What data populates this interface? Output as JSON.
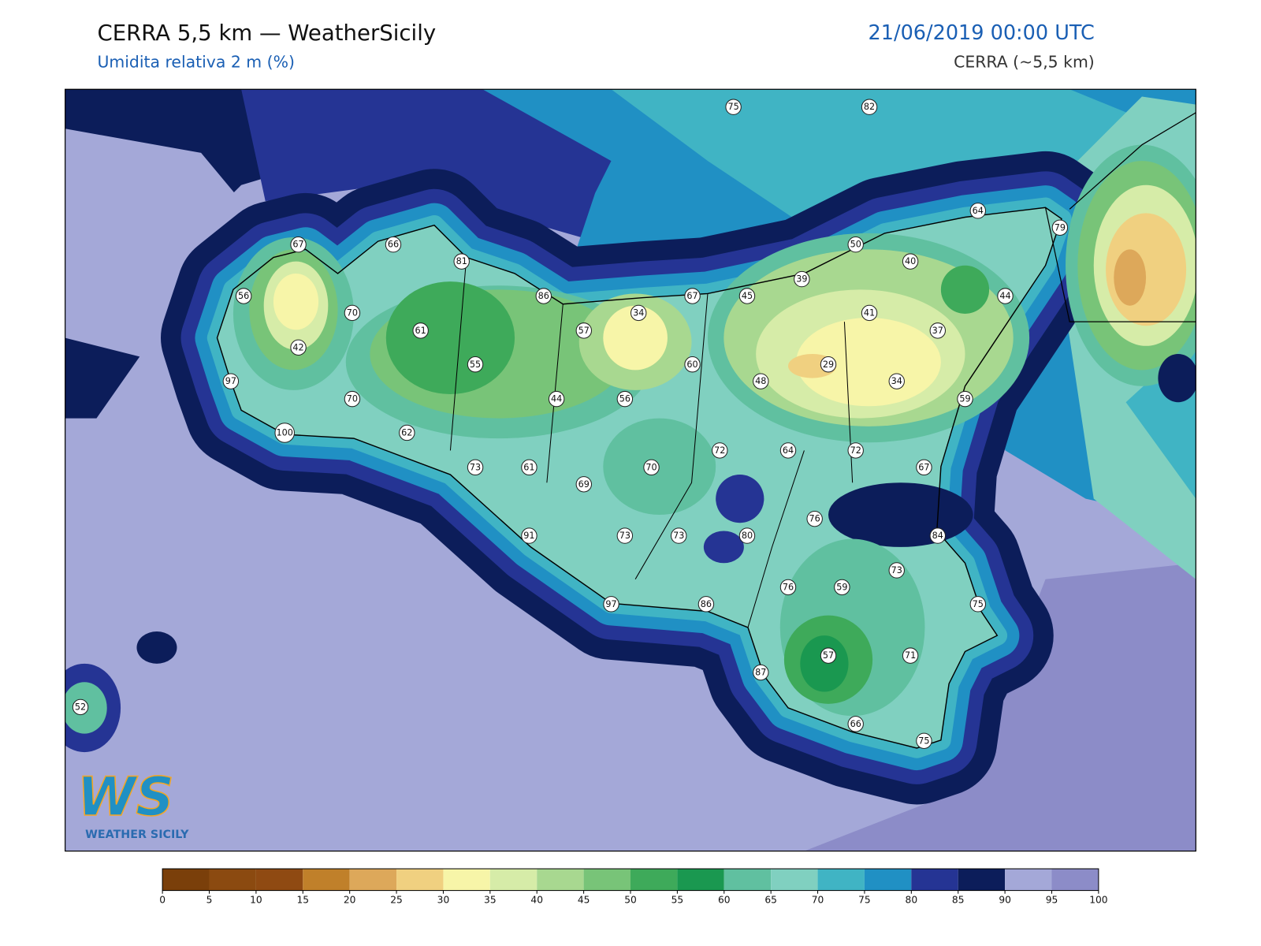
{
  "header": {
    "title": "CERRA 5,5 km — WeatherSicily",
    "subtitle": "Umidita relativa 2 m (%)",
    "date": "21/06/2019 00:00 UTC",
    "model": "CERRA (~5,5 km)"
  },
  "stations": [
    75,
    82,
    64,
    79,
    67,
    66,
    81,
    50,
    40,
    56,
    70,
    86,
    67,
    45,
    39,
    44,
    34,
    41,
    61,
    57,
    37,
    42,
    55,
    60,
    29,
    48,
    34,
    97,
    70,
    44,
    56,
    59,
    62,
    100,
    72,
    64,
    72,
    73,
    61,
    70,
    67,
    69,
    76,
    91,
    73,
    73,
    80,
    84,
    73,
    76,
    59,
    75,
    97,
    86,
    57,
    71,
    87,
    52,
    66,
    75
  ],
  "colorbar": {
    "ticks": [
      0,
      5,
      10,
      15,
      20,
      25,
      30,
      35,
      40,
      45,
      50,
      55,
      60,
      65,
      70,
      75,
      80,
      85,
      90,
      95,
      100
    ],
    "colors": [
      "#7a3f0a",
      "#8b4a10",
      "#8f4a12",
      "#c0802a",
      "#dda85a",
      "#f0d080",
      "#f7f5a8",
      "#d6eca8",
      "#a8d890",
      "#78c478",
      "#3eaa5a",
      "#1a9850",
      "#60c0a0",
      "#80d0c0",
      "#40b4c4",
      "#2090c4",
      "#253494",
      "#0c1d5a",
      "#a4a8d8",
      "#8c8cc8"
    ]
  },
  "logo": {
    "mark": "WS",
    "name": "WEATHER SICILY"
  }
}
